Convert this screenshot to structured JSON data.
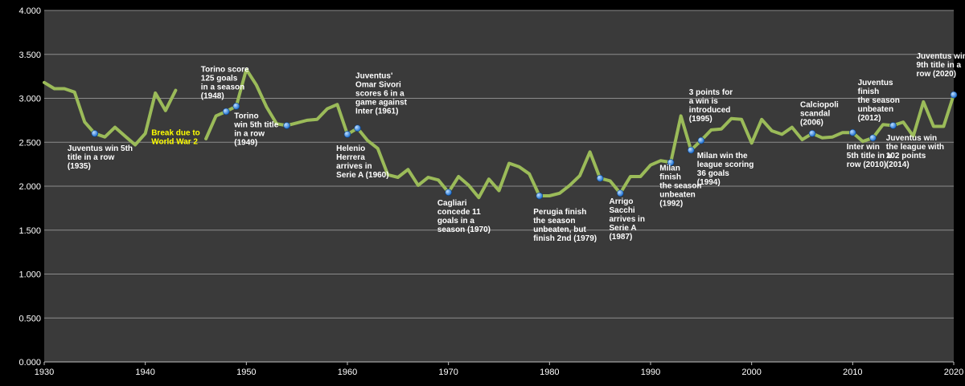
{
  "chart_data": {
    "type": "line",
    "title": "",
    "xlabel": "",
    "ylabel": "",
    "xlim": [
      1930,
      2020
    ],
    "ylim": [
      0,
      4
    ],
    "x_ticks": [
      "1930",
      "1940",
      "1950",
      "1960",
      "1970",
      "1980",
      "1990",
      "2000",
      "2010",
      "2020"
    ],
    "y_ticks": [
      "0.000",
      "0.500",
      "1.000",
      "1.500",
      "2.000",
      "2.500",
      "3.000",
      "3.500",
      "4.000"
    ],
    "grid": true,
    "line_color": "#9bbb59",
    "marker_color": "#1f6fd0",
    "background": "#3a3a3a",
    "series": [
      {
        "segments": [
          [
            [
              1930,
              3.18
            ],
            [
              1931,
              3.11
            ],
            [
              1932,
              3.11
            ],
            [
              1933,
              3.07
            ],
            [
              1934,
              2.73
            ],
            [
              1935,
              2.6
            ],
            [
              1936,
              2.56
            ],
            [
              1937,
              2.67
            ],
            [
              1938,
              2.57
            ],
            [
              1939,
              2.47
            ],
            [
              1940,
              2.6
            ],
            [
              1941,
              3.06
            ],
            [
              1942,
              2.86
            ],
            [
              1943,
              3.09
            ]
          ],
          [
            [
              1946,
              2.54
            ],
            [
              1947,
              2.8
            ],
            [
              1948,
              2.85
            ],
            [
              1949,
              2.91
            ],
            [
              1950,
              3.33
            ],
            [
              1951,
              3.15
            ],
            [
              1952,
              2.9
            ],
            [
              1953,
              2.71
            ],
            [
              1954,
              2.69
            ],
            [
              1955,
              2.72
            ],
            [
              1956,
              2.75
            ],
            [
              1957,
              2.76
            ],
            [
              1958,
              2.88
            ],
            [
              1959,
              2.93
            ],
            [
              1960,
              2.59
            ],
            [
              1961,
              2.66
            ],
            [
              1962,
              2.52
            ],
            [
              1963,
              2.43
            ],
            [
              1964,
              2.13
            ],
            [
              1965,
              2.1
            ],
            [
              1966,
              2.19
            ],
            [
              1967,
              2.01
            ],
            [
              1968,
              2.1
            ],
            [
              1969,
              2.07
            ],
            [
              1970,
              1.93
            ],
            [
              1971,
              2.11
            ],
            [
              1972,
              2.01
            ],
            [
              1973,
              1.87
            ],
            [
              1974,
              2.08
            ],
            [
              1975,
              1.95
            ],
            [
              1976,
              2.26
            ],
            [
              1977,
              2.22
            ],
            [
              1978,
              2.14
            ],
            [
              1979,
              1.89
            ],
            [
              1980,
              1.89
            ],
            [
              1981,
              1.92
            ],
            [
              1982,
              2.01
            ],
            [
              1983,
              2.12
            ],
            [
              1984,
              2.39
            ],
            [
              1985,
              2.09
            ],
            [
              1986,
              2.06
            ],
            [
              1987,
              1.92
            ],
            [
              1988,
              2.11
            ],
            [
              1989,
              2.11
            ],
            [
              1990,
              2.24
            ],
            [
              1991,
              2.29
            ],
            [
              1992,
              2.27
            ],
            [
              1993,
              2.8
            ],
            [
              1994,
              2.41
            ],
            [
              1995,
              2.52
            ],
            [
              1996,
              2.64
            ],
            [
              1997,
              2.65
            ],
            [
              1998,
              2.77
            ],
            [
              1999,
              2.76
            ],
            [
              2000,
              2.49
            ],
            [
              2001,
              2.76
            ],
            [
              2002,
              2.63
            ],
            [
              2003,
              2.59
            ],
            [
              2004,
              2.67
            ],
            [
              2005,
              2.53
            ],
            [
              2006,
              2.6
            ],
            [
              2007,
              2.55
            ],
            [
              2008,
              2.56
            ],
            [
              2009,
              2.61
            ],
            [
              2010,
              2.61
            ],
            [
              2011,
              2.51
            ],
            [
              2012,
              2.55
            ],
            [
              2013,
              2.7
            ],
            [
              2014,
              2.69
            ],
            [
              2015,
              2.73
            ],
            [
              2016,
              2.57
            ],
            [
              2017,
              2.96
            ],
            [
              2018,
              2.68
            ],
            [
              2019,
              2.68
            ],
            [
              2020,
              3.04
            ]
          ]
        ]
      }
    ],
    "markers": [
      [
        1935,
        2.6
      ],
      [
        1948,
        2.85
      ],
      [
        1949,
        2.91
      ],
      [
        1954,
        2.69
      ],
      [
        1960,
        2.59
      ],
      [
        1961,
        2.66
      ],
      [
        1970,
        1.93
      ],
      [
        1979,
        1.89
      ],
      [
        1985,
        2.09
      ],
      [
        1987,
        1.92
      ],
      [
        1992,
        2.27
      ],
      [
        1994,
        2.41
      ],
      [
        1995,
        2.52
      ],
      [
        2006,
        2.6
      ],
      [
        2010,
        2.61
      ],
      [
        2012,
        2.55
      ],
      [
        2014,
        2.69
      ],
      [
        2020,
        3.04
      ]
    ],
    "annotations": [
      {
        "x": 1932.3,
        "y": 2.4,
        "lines": [
          "Juventus win 5th",
          "title in a row",
          "(1935)"
        ],
        "color": "#ffffff"
      },
      {
        "x": 1940.6,
        "y": 2.58,
        "lines": [
          "Break due to",
          "World War 2"
        ],
        "color": "#ffff00"
      },
      {
        "x": 1945.5,
        "y": 3.3,
        "lines": [
          "Torino score",
          "125 goals",
          "in a season",
          "(1948)"
        ],
        "color": "#ffffff"
      },
      {
        "x": 1948.8,
        "y": 2.77,
        "lines": [
          "Torino",
          "win 5th title",
          "in a row",
          "(1949)"
        ],
        "color": "#ffffff"
      },
      {
        "x": 1960.8,
        "y": 3.23,
        "lines": [
          "Juventus'",
          "Omar Sivori",
          "scores 6 in a",
          "game against",
          "Inter (1961)"
        ],
        "color": "#ffffff"
      },
      {
        "x": 1958.9,
        "y": 2.4,
        "lines": [
          "Helenio",
          "Herrera",
          "arrives in",
          "Serie A (1960)"
        ],
        "color": "#ffffff"
      },
      {
        "x": 1968.9,
        "y": 1.78,
        "lines": [
          "Cagliari",
          "concede 11",
          "goals in a",
          "season (1970)"
        ],
        "color": "#ffffff"
      },
      {
        "x": 1978.4,
        "y": 1.68,
        "lines": [
          "Perugia finish",
          "the season",
          "unbeaten, but",
          "finish 2nd (1979)"
        ],
        "color": "#ffffff"
      },
      {
        "x": 1985.9,
        "y": 1.8,
        "lines": [
          "Arrigo",
          "Sacchi",
          "arrives in",
          "Serie A",
          "(1987)"
        ],
        "color": "#ffffff"
      },
      {
        "x": 1990.9,
        "y": 2.18,
        "lines": [
          "Milan",
          "finish",
          "the season",
          "unbeaten",
          "(1992)"
        ],
        "color": "#ffffff"
      },
      {
        "x": 1993.8,
        "y": 3.04,
        "lines": [
          "3 points for",
          "a win is",
          "introduced",
          "(1995)"
        ],
        "color": "#ffffff"
      },
      {
        "x": 1994.6,
        "y": 2.32,
        "lines": [
          "Milan win the",
          "league scoring",
          "36 goals",
          "(1994)"
        ],
        "color": "#ffffff"
      },
      {
        "x": 2004.8,
        "y": 2.9,
        "lines": [
          "Calciopoli",
          "scandal",
          "(2006)"
        ],
        "color": "#ffffff"
      },
      {
        "x": 2009.4,
        "y": 2.42,
        "lines": [
          "Inter win",
          "5th title in a",
          "row (2010)"
        ],
        "color": "#ffffff"
      },
      {
        "x": 2010.5,
        "y": 3.15,
        "lines": [
          "Juventus",
          "finish",
          "the season",
          "unbeaten",
          "(2012)"
        ],
        "color": "#ffffff"
      },
      {
        "x": 2013.3,
        "y": 2.52,
        "lines": [
          "Juventus win",
          "the league with",
          "102 points",
          "(2014)"
        ],
        "color": "#ffffff"
      },
      {
        "x": 2016.3,
        "y": 3.45,
        "lines": [
          "Juventus win",
          "9th title in a",
          "row (2020)"
        ],
        "color": "#ffffff"
      }
    ]
  }
}
